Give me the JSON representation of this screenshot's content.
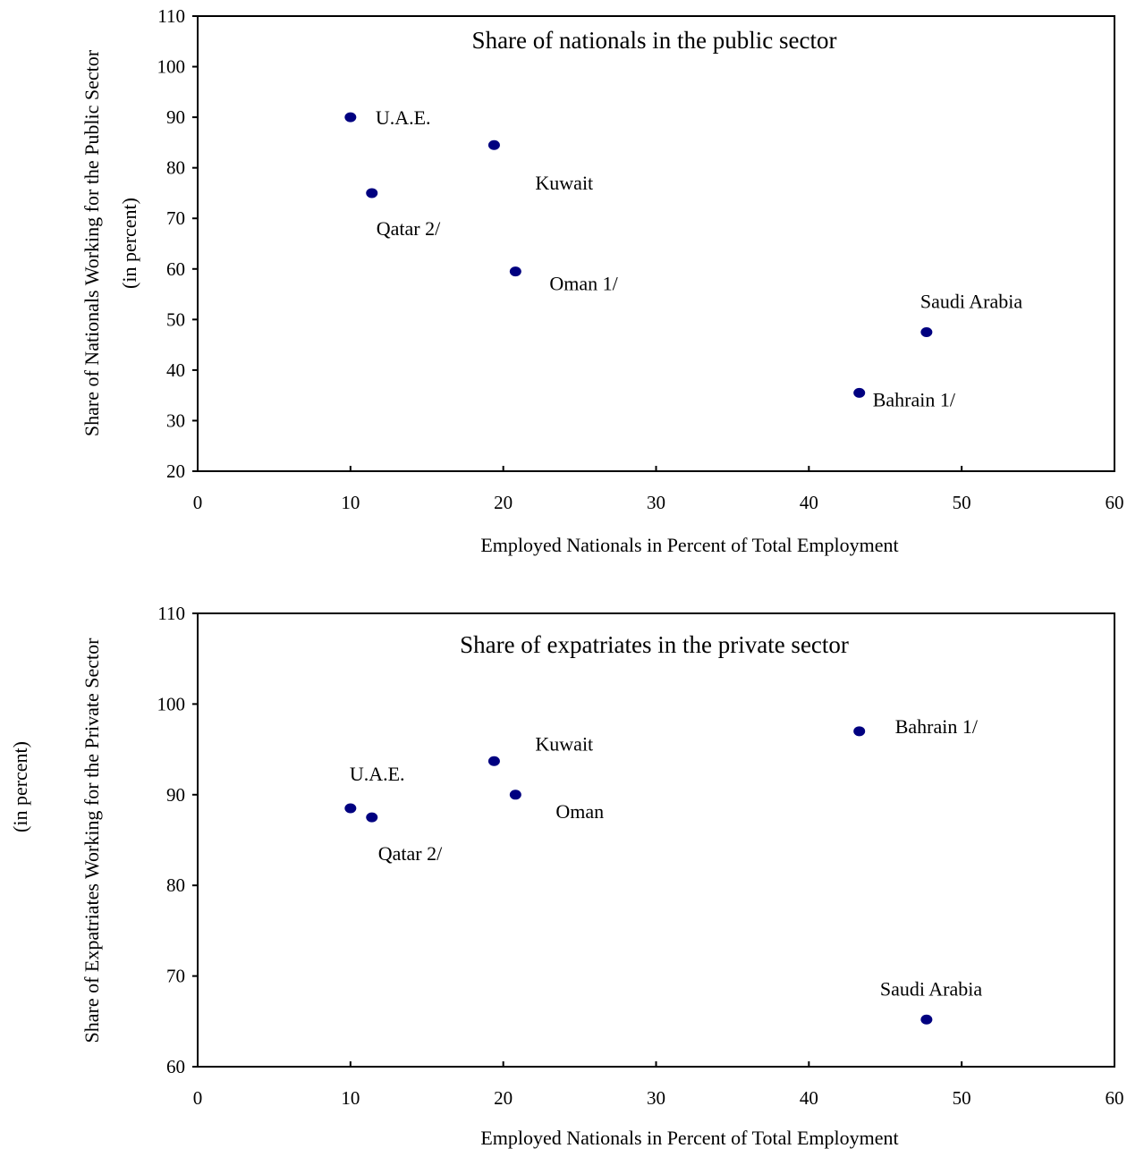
{
  "colors": {
    "marker": "#000080",
    "axis": "#000000",
    "background": "#ffffff"
  },
  "chart_data": [
    {
      "type": "scatter",
      "title": "Share of nationals in the public sector",
      "xlabel": "Employed Nationals in Percent of Total Employment",
      "ylabel": "Share of Nationals Working for the Public Sector",
      "ylabel_sub": "(in percent)",
      "xlim": [
        0,
        60
      ],
      "ylim": [
        20,
        110
      ],
      "xticks": [
        0,
        10,
        20,
        30,
        40,
        50,
        60
      ],
      "yticks": [
        20,
        30,
        40,
        50,
        60,
        70,
        80,
        90,
        100,
        110
      ],
      "grid": false,
      "legend": "none",
      "points": [
        {
          "label": "U.A.E.",
          "x": 10.0,
          "y": 90.0
        },
        {
          "label": "Kuwait",
          "x": 19.4,
          "y": 84.5
        },
        {
          "label": "Qatar 2/",
          "x": 11.4,
          "y": 75.0
        },
        {
          "label": "Oman 1/",
          "x": 20.8,
          "y": 59.5
        },
        {
          "label": "Saudi Arabia",
          "x": 47.7,
          "y": 47.5
        },
        {
          "label": "Bahrain 1/",
          "x": 43.3,
          "y": 35.5
        }
      ]
    },
    {
      "type": "scatter",
      "title": "Share of expatriates in the private sector",
      "xlabel": "Employed Nationals in Percent of Total Employment",
      "ylabel": "Share of Expatriates Working for the Private Sector",
      "ylabel_sub": "(in percent)",
      "xlim": [
        0,
        60
      ],
      "ylim": [
        60,
        110
      ],
      "xticks": [
        0,
        10,
        20,
        30,
        40,
        50,
        60
      ],
      "yticks": [
        60,
        70,
        80,
        90,
        100,
        110
      ],
      "grid": false,
      "legend": "none",
      "points": [
        {
          "label": "U.A.E.",
          "x": 10.0,
          "y": 88.5
        },
        {
          "label": "Qatar 2/",
          "x": 11.4,
          "y": 87.5
        },
        {
          "label": "Kuwait",
          "x": 19.4,
          "y": 93.7
        },
        {
          "label": "Oman",
          "x": 20.8,
          "y": 90.0
        },
        {
          "label": "Bahrain 1/",
          "x": 43.3,
          "y": 97.0
        },
        {
          "label": "Saudi Arabia",
          "x": 47.7,
          "y": 65.2
        }
      ]
    }
  ]
}
